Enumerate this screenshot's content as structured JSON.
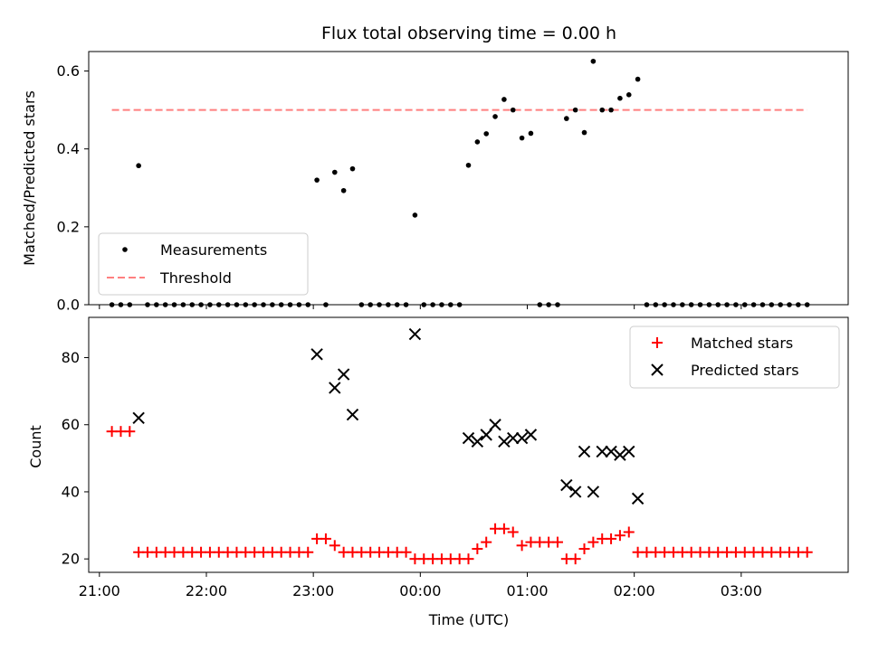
{
  "chart_data": [
    {
      "type": "scatter",
      "title": "Flux total observing time = 0.00 h",
      "xlabel": "",
      "ylabel": "Matched/Predicted stars",
      "ylim": [
        0,
        0.65
      ],
      "yticks": [
        "0.0",
        "0.2",
        "0.4",
        "0.6"
      ],
      "ytick_values": [
        0,
        0.2,
        0.4,
        0.6
      ],
      "legend": {
        "placement": "lower-left",
        "entries": [
          "Measurements",
          "Threshold"
        ]
      },
      "threshold": {
        "value": 0.5,
        "x_start": "21:07",
        "x_end": "03:37",
        "color": "#ff7f7f"
      },
      "series": [
        {
          "name": "Measurements",
          "color": "#000000",
          "marker": "dot",
          "points": [
            [
              "21:07",
              0
            ],
            [
              "21:12",
              0
            ],
            [
              "21:17",
              0
            ],
            [
              "21:22",
              0.357
            ],
            [
              "21:27",
              0
            ],
            [
              "21:32",
              0
            ],
            [
              "21:37",
              0
            ],
            [
              "21:42",
              0
            ],
            [
              "21:47",
              0
            ],
            [
              "21:52",
              0
            ],
            [
              "21:57",
              0
            ],
            [
              "22:02",
              0
            ],
            [
              "22:07",
              0
            ],
            [
              "22:12",
              0
            ],
            [
              "22:17",
              0
            ],
            [
              "22:22",
              0
            ],
            [
              "22:27",
              0
            ],
            [
              "22:32",
              0
            ],
            [
              "22:37",
              0
            ],
            [
              "22:42",
              0
            ],
            [
              "22:47",
              0
            ],
            [
              "22:52",
              0
            ],
            [
              "22:57",
              0
            ],
            [
              "23:02",
              0.32
            ],
            [
              "23:07",
              0
            ],
            [
              "23:12",
              0.34
            ],
            [
              "23:17",
              0.293
            ],
            [
              "23:22",
              0.349
            ],
            [
              "23:27",
              0
            ],
            [
              "23:32",
              0
            ],
            [
              "23:37",
              0
            ],
            [
              "23:42",
              0
            ],
            [
              "23:47",
              0
            ],
            [
              "23:52",
              0
            ],
            [
              "23:57",
              0.23
            ],
            [
              "00:02",
              0
            ],
            [
              "00:07",
              0
            ],
            [
              "00:12",
              0
            ],
            [
              "00:17",
              0
            ],
            [
              "00:22",
              0
            ],
            [
              "00:27",
              0.358
            ],
            [
              "00:32",
              0.418
            ],
            [
              "00:37",
              0.439
            ],
            [
              "00:42",
              0.483
            ],
            [
              "00:47",
              0.527
            ],
            [
              "00:52",
              0.5
            ],
            [
              "00:57",
              0.428
            ],
            [
              "01:02",
              0.44
            ],
            [
              "01:07",
              0
            ],
            [
              "01:12",
              0
            ],
            [
              "01:17",
              0
            ],
            [
              "01:22",
              0.478
            ],
            [
              "01:27",
              0.5
            ],
            [
              "01:32",
              0.442
            ],
            [
              "01:37",
              0.625
            ],
            [
              "01:42",
              0.5
            ],
            [
              "01:47",
              0.5
            ],
            [
              "01:52",
              0.53
            ],
            [
              "01:57",
              0.539
            ],
            [
              "02:02",
              0.579
            ],
            [
              "02:07",
              0
            ],
            [
              "02:12",
              0
            ],
            [
              "02:17",
              0
            ],
            [
              "02:22",
              0
            ],
            [
              "02:27",
              0
            ],
            [
              "02:32",
              0
            ],
            [
              "02:37",
              0
            ],
            [
              "02:42",
              0
            ],
            [
              "02:47",
              0
            ],
            [
              "02:52",
              0
            ],
            [
              "02:57",
              0
            ],
            [
              "03:02",
              0
            ],
            [
              "03:07",
              0
            ],
            [
              "03:12",
              0
            ],
            [
              "03:17",
              0
            ],
            [
              "03:22",
              0
            ],
            [
              "03:27",
              0
            ],
            [
              "03:32",
              0
            ],
            [
              "03:37",
              0
            ]
          ]
        }
      ]
    },
    {
      "type": "scatter",
      "title": "",
      "xlabel": "Time (UTC)",
      "ylabel": "Count",
      "ylim": [
        16,
        92
      ],
      "yticks": [
        "20",
        "40",
        "60",
        "80"
      ],
      "ytick_values": [
        20,
        40,
        60,
        80
      ],
      "xlim": [
        "20:54",
        "04:00"
      ],
      "xticks": [
        "21:00",
        "22:00",
        "23:00",
        "00:00",
        "01:00",
        "02:00",
        "03:00"
      ],
      "xtick_values": [
        "21:00",
        "22:00",
        "23:00",
        "00:00",
        "01:00",
        "02:00",
        "03:00"
      ],
      "legend": {
        "placement": "top-right",
        "entries": [
          "Matched stars",
          "Predicted stars"
        ]
      },
      "series": [
        {
          "name": "Matched stars",
          "color": "#ff0000",
          "marker": "plus",
          "points": [
            [
              "21:07",
              58
            ],
            [
              "21:12",
              58
            ],
            [
              "21:17",
              58
            ],
            [
              "21:22",
              22
            ],
            [
              "21:27",
              22
            ],
            [
              "21:32",
              22
            ],
            [
              "21:37",
              22
            ],
            [
              "21:42",
              22
            ],
            [
              "21:47",
              22
            ],
            [
              "21:52",
              22
            ],
            [
              "21:57",
              22
            ],
            [
              "22:02",
              22
            ],
            [
              "22:07",
              22
            ],
            [
              "22:12",
              22
            ],
            [
              "22:17",
              22
            ],
            [
              "22:22",
              22
            ],
            [
              "22:27",
              22
            ],
            [
              "22:32",
              22
            ],
            [
              "22:37",
              22
            ],
            [
              "22:42",
              22
            ],
            [
              "22:47",
              22
            ],
            [
              "22:52",
              22
            ],
            [
              "22:57",
              22
            ],
            [
              "23:02",
              26
            ],
            [
              "23:07",
              26
            ],
            [
              "23:12",
              24
            ],
            [
              "23:17",
              22
            ],
            [
              "23:22",
              22
            ],
            [
              "23:27",
              22
            ],
            [
              "23:32",
              22
            ],
            [
              "23:37",
              22
            ],
            [
              "23:42",
              22
            ],
            [
              "23:47",
              22
            ],
            [
              "23:52",
              22
            ],
            [
              "23:57",
              20
            ],
            [
              "00:02",
              20
            ],
            [
              "00:07",
              20
            ],
            [
              "00:12",
              20
            ],
            [
              "00:17",
              20
            ],
            [
              "00:22",
              20
            ],
            [
              "00:27",
              20
            ],
            [
              "00:32",
              23
            ],
            [
              "00:37",
              25
            ],
            [
              "00:42",
              29
            ],
            [
              "00:47",
              29
            ],
            [
              "00:52",
              28
            ],
            [
              "00:57",
              24
            ],
            [
              "01:02",
              25
            ],
            [
              "01:07",
              25
            ],
            [
              "01:12",
              25
            ],
            [
              "01:17",
              25
            ],
            [
              "01:22",
              20
            ],
            [
              "01:27",
              20
            ],
            [
              "01:32",
              23
            ],
            [
              "01:37",
              25
            ],
            [
              "01:42",
              26
            ],
            [
              "01:47",
              26
            ],
            [
              "01:52",
              27
            ],
            [
              "01:57",
              28
            ],
            [
              "02:02",
              22
            ],
            [
              "02:07",
              22
            ],
            [
              "02:12",
              22
            ],
            [
              "02:17",
              22
            ],
            [
              "02:22",
              22
            ],
            [
              "02:27",
              22
            ],
            [
              "02:32",
              22
            ],
            [
              "02:37",
              22
            ],
            [
              "02:42",
              22
            ],
            [
              "02:47",
              22
            ],
            [
              "02:52",
              22
            ],
            [
              "02:57",
              22
            ],
            [
              "03:02",
              22
            ],
            [
              "03:07",
              22
            ],
            [
              "03:12",
              22
            ],
            [
              "03:17",
              22
            ],
            [
              "03:22",
              22
            ],
            [
              "03:27",
              22
            ],
            [
              "03:32",
              22
            ],
            [
              "03:37",
              22
            ]
          ]
        },
        {
          "name": "Predicted stars",
          "color": "#000000",
          "marker": "x",
          "points": [
            [
              "21:22",
              62
            ],
            [
              "23:02",
              81
            ],
            [
              "23:12",
              71
            ],
            [
              "23:17",
              75
            ],
            [
              "23:22",
              63
            ],
            [
              "23:57",
              87
            ],
            [
              "00:27",
              56
            ],
            [
              "00:32",
              55
            ],
            [
              "00:37",
              57
            ],
            [
              "00:42",
              60
            ],
            [
              "00:47",
              55
            ],
            [
              "00:52",
              56
            ],
            [
              "00:57",
              56
            ],
            [
              "01:02",
              57
            ],
            [
              "01:22",
              42
            ],
            [
              "01:27",
              40
            ],
            [
              "01:32",
              52
            ],
            [
              "01:37",
              40
            ],
            [
              "01:42",
              52
            ],
            [
              "01:47",
              52
            ],
            [
              "01:52",
              51
            ],
            [
              "01:57",
              52
            ],
            [
              "02:02",
              38
            ]
          ]
        }
      ]
    }
  ]
}
